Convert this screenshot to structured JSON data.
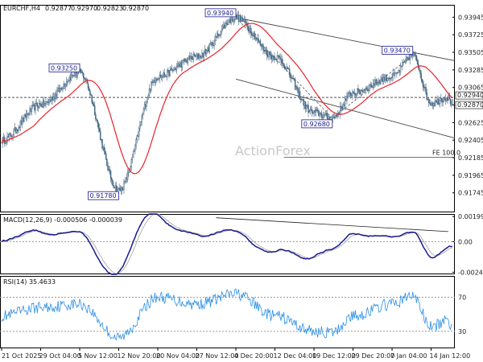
{
  "chart_data": [
    {
      "type": "candlestick",
      "panel": "price",
      "symbol_label": "EURCHF,H4",
      "ohlc_readout": [
        "0.92877",
        "0.92970",
        "0.92823",
        "0.92870"
      ],
      "watermark": "ActionForex",
      "ylim": [
        0.915,
        0.941
      ],
      "y_ticks": [
        "0.93945",
        "0.93725",
        "0.93505",
        "0.93285",
        "0.93065",
        "0.92845",
        "0.92625",
        "0.92405",
        "0.92185",
        "0.91965",
        "0.91745"
      ],
      "y_tick_values": [
        0.93945,
        0.93725,
        0.93505,
        0.93285,
        0.93065,
        0.92845,
        0.92625,
        0.92405,
        0.92185,
        0.91965,
        0.91745
      ],
      "price_tags": [
        {
          "label": "0.92940",
          "value": 0.9294
        },
        {
          "label": "0.92870",
          "value": 0.9287
        }
      ],
      "annotations": [
        {
          "label": "0.93940",
          "value": 0.9394,
          "date": "4 Dec 20:00"
        },
        {
          "label": "0.93250",
          "value": 0.9325,
          "date": "5 Nov 12:00"
        },
        {
          "label": "0.91780",
          "value": 0.9178,
          "date": "12 Nov 20:00"
        },
        {
          "label": "0.93470",
          "value": 0.9347,
          "date": "9 Jan 12:00"
        },
        {
          "label": "0.92680",
          "value": 0.9268,
          "date": "24 Dec 12:00"
        }
      ],
      "fe_label": "FE 100.0",
      "fe_value": 0.9219,
      "moving_average_color": "#e8232a",
      "candle_color": "#4a6a85"
    },
    {
      "type": "line",
      "panel": "macd",
      "title": "MACD(12,26,9) -0.000506 -0.000039",
      "y_ticks": [
        "0.001998",
        "0.00",
        "-0.002434"
      ],
      "y_tick_values": [
        0.001998,
        0.0,
        -0.002434
      ],
      "ylim": [
        -0.0026,
        0.0022
      ],
      "series_colors": [
        "#1a1a8c",
        "#aaaaaa"
      ]
    },
    {
      "type": "line",
      "panel": "rsi",
      "title": "RSI(14) 35.4633",
      "y_ticks": [
        "70",
        "30"
      ],
      "y_tick_values": [
        70,
        30
      ],
      "ylim": [
        10,
        95
      ],
      "line_color": "#2b8fe6"
    }
  ],
  "x_ticks": [
    "21 Oct 2025",
    "29 Oct 04:00",
    "5 Nov 12:00",
    "12 Nov 20:00",
    "20 Nov 04:00",
    "27 Nov 12:00",
    "4 Dec 20:00",
    "12 Dec 04:00",
    "19 Dec 12:00",
    "29 Dec 20:00",
    "7 Jan 04:00",
    "14 Jan 12:00"
  ],
  "key_points": [
    {
      "date": "21 Oct 2025",
      "price": 0.924,
      "rsi": 48
    },
    {
      "date": "29 Oct 04:00",
      "price": 0.9285,
      "rsi": 58
    },
    {
      "date": "5 Nov 12:00",
      "price": 0.9325,
      "rsi": 62
    },
    {
      "date": "12 Nov 20:00",
      "price": 0.9178,
      "rsi": 22
    },
    {
      "date": "20 Nov 04:00",
      "price": 0.932,
      "rsi": 70
    },
    {
      "date": "27 Nov 12:00",
      "price": 0.9345,
      "rsi": 62
    },
    {
      "date": "4 Dec 20:00",
      "price": 0.9394,
      "rsi": 74
    },
    {
      "date": "12 Dec 04:00",
      "price": 0.9345,
      "rsi": 48
    },
    {
      "date": "19 Dec 12:00",
      "price": 0.9275,
      "rsi": 30
    },
    {
      "date": "24 Dec 12:00",
      "price": 0.9268,
      "rsi": 28
    },
    {
      "date": "29 Dec 20:00",
      "price": 0.93,
      "rsi": 48
    },
    {
      "date": "7 Jan 04:00",
      "price": 0.932,
      "rsi": 62
    },
    {
      "date": "9 Jan 12:00",
      "price": 0.9347,
      "rsi": 72
    },
    {
      "date": "14 Jan 12:00",
      "price": 0.9287,
      "rsi": 35
    }
  ]
}
